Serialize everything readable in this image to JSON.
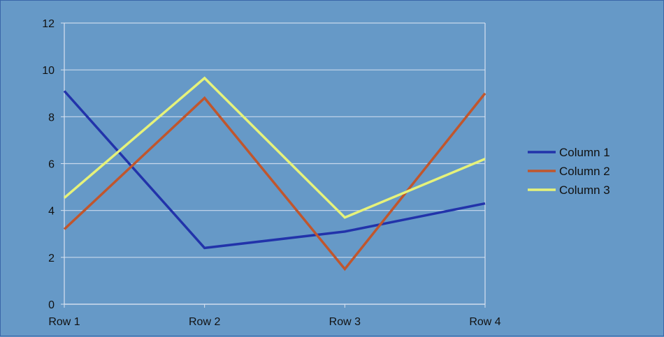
{
  "chart_data": {
    "type": "line",
    "title": "",
    "xlabel": "",
    "ylabel": "",
    "categories": [
      "Row 1",
      "Row 2",
      "Row 3",
      "Row 4"
    ],
    "ylim": [
      0,
      12
    ],
    "yticks": [
      0,
      2,
      4,
      6,
      8,
      10,
      12
    ],
    "grid": true,
    "legend_position": "right",
    "series": [
      {
        "name": "Column 1",
        "values": [
          9.1,
          2.4,
          3.1,
          4.3
        ],
        "color": "#2233aa"
      },
      {
        "name": "Column 2",
        "values": [
          3.2,
          8.8,
          1.5,
          9.0
        ],
        "color": "#c0562d"
      },
      {
        "name": "Column 3",
        "values": [
          4.54,
          9.65,
          3.7,
          6.2
        ],
        "color": "#e6f27a"
      }
    ],
    "colors": {
      "background": "#6699c7",
      "grid": "#c9d9ec",
      "axis": "#d8e2f0"
    }
  }
}
